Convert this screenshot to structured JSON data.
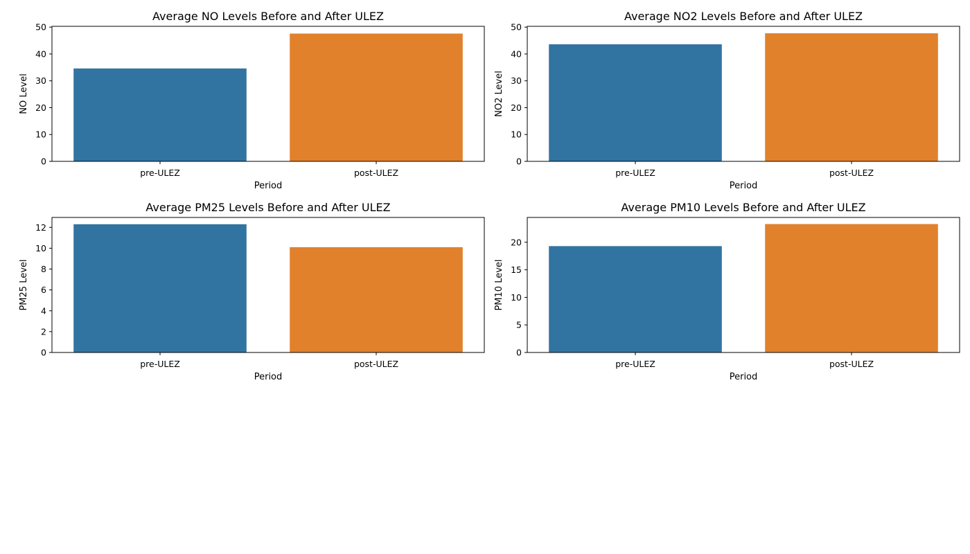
{
  "chart_data": [
    {
      "type": "bar",
      "title": "Average NO Levels Before and After ULEZ",
      "xlabel": "Period",
      "ylabel": "NO Level",
      "categories": [
        "pre-ULEZ",
        "post-ULEZ"
      ],
      "values": [
        34.6,
        47.6
      ],
      "ylim": [
        0,
        50.3
      ],
      "yticks": [
        0,
        10,
        20,
        30,
        40,
        50
      ],
      "colors": [
        "#3274a1",
        "#e1812c"
      ],
      "grid": false
    },
    {
      "type": "bar",
      "title": "Average NO2 Levels Before and After ULEZ",
      "xlabel": "Period",
      "ylabel": "NO2 Level",
      "categories": [
        "pre-ULEZ",
        "post-ULEZ"
      ],
      "values": [
        43.6,
        47.7
      ],
      "ylim": [
        0,
        50.3
      ],
      "yticks": [
        0,
        10,
        20,
        30,
        40,
        50
      ],
      "colors": [
        "#3274a1",
        "#e1812c"
      ],
      "grid": false
    },
    {
      "type": "bar",
      "title": "Average PM25 Levels Before and After ULEZ",
      "xlabel": "Period",
      "ylabel": "PM25 Level",
      "categories": [
        "pre-ULEZ",
        "post-ULEZ"
      ],
      "values": [
        12.3,
        10.1
      ],
      "ylim": [
        0,
        12.95
      ],
      "yticks": [
        0,
        2,
        4,
        6,
        8,
        10,
        12
      ],
      "colors": [
        "#3274a1",
        "#e1812c"
      ],
      "grid": false
    },
    {
      "type": "bar",
      "title": "Average PM10 Levels Before and After ULEZ",
      "xlabel": "Period",
      "ylabel": "PM10 Level",
      "categories": [
        "pre-ULEZ",
        "post-ULEZ"
      ],
      "values": [
        19.3,
        23.3
      ],
      "ylim": [
        0,
        24.5
      ],
      "yticks": [
        0,
        5,
        10,
        15,
        20
      ],
      "colors": [
        "#3274a1",
        "#e1812c"
      ],
      "grid": false
    }
  ]
}
